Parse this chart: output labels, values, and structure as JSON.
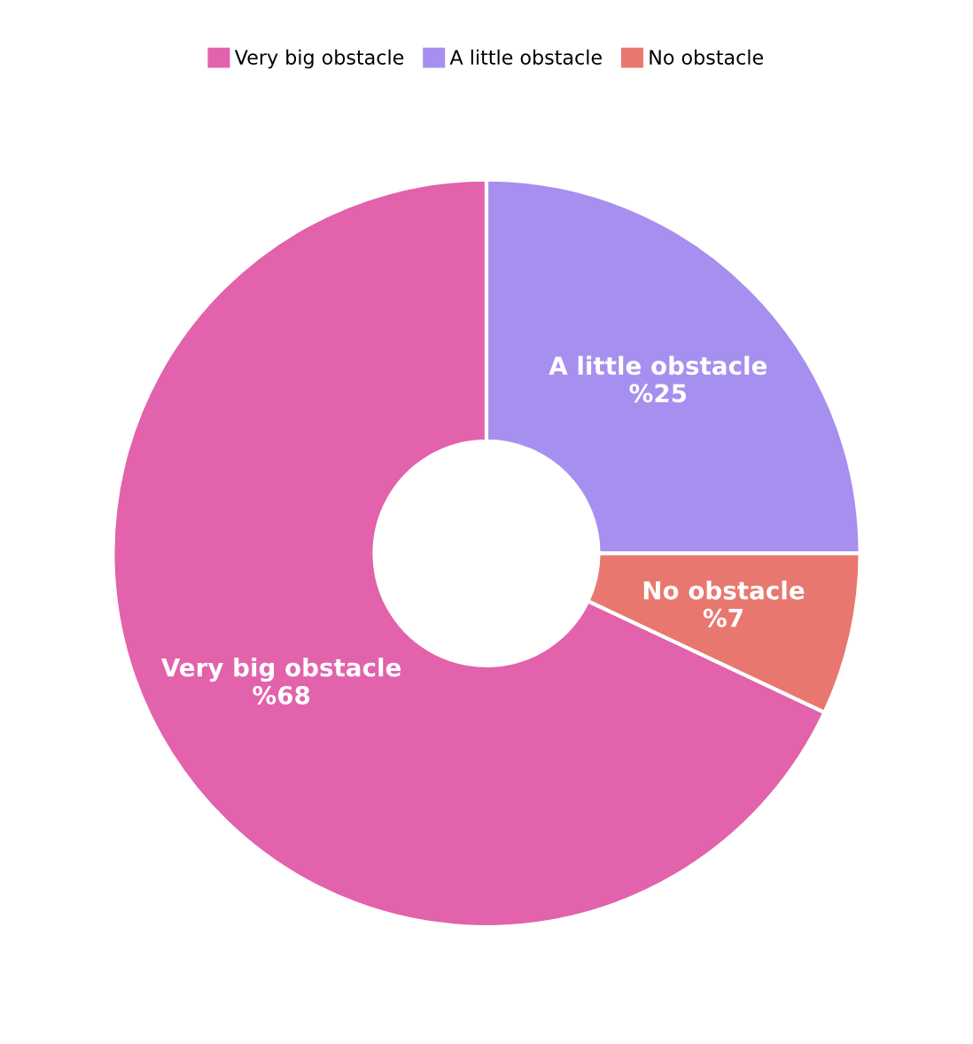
{
  "chart_data": {
    "type": "donut",
    "categories": [
      "Very big obstacle",
      "A little obstacle",
      "No obstacle"
    ],
    "values": [
      68,
      25,
      7
    ],
    "colors": [
      "#e262ab",
      "#a78ff0",
      "#e8786f"
    ],
    "value_labels": [
      "%68",
      "%25",
      "%7"
    ],
    "legend": "top"
  }
}
